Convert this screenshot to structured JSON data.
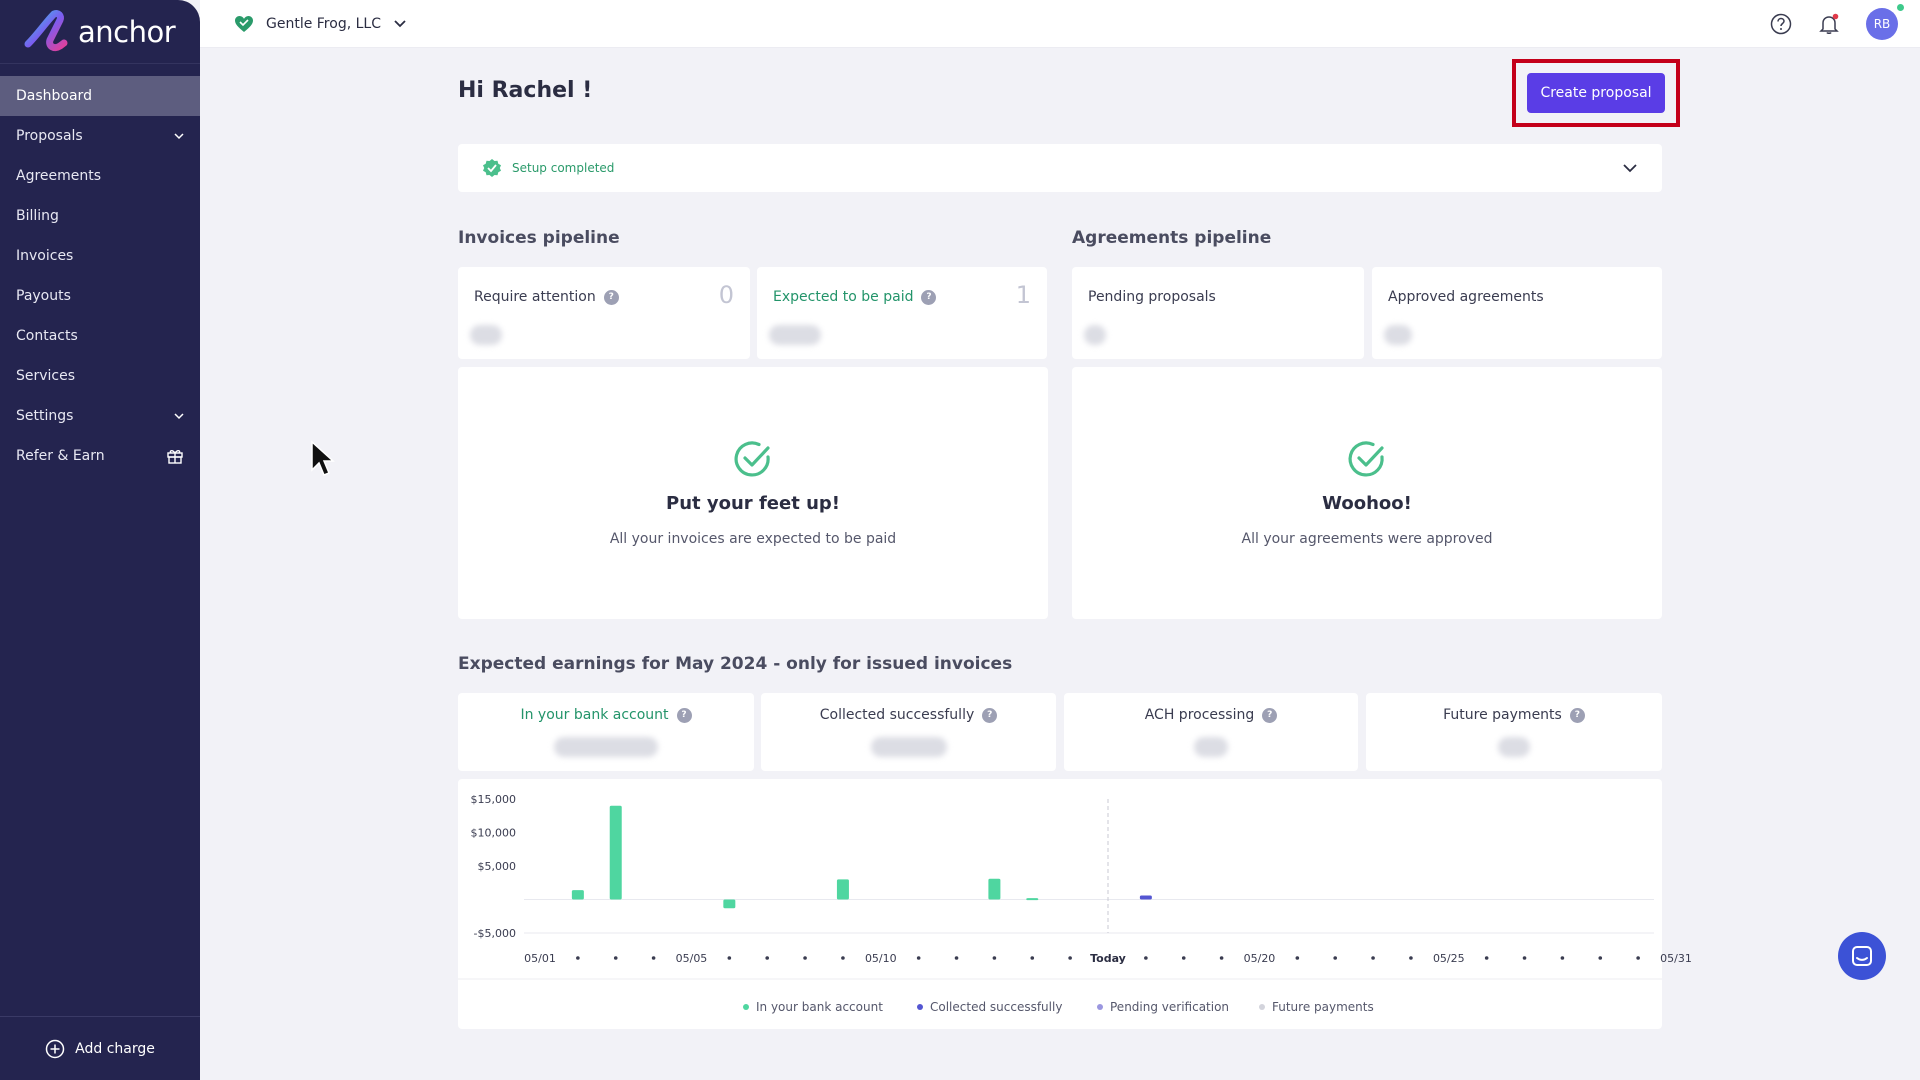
{
  "brand": {
    "name": "anchor"
  },
  "sidebar": {
    "items": [
      {
        "label": "Dashboard",
        "active": true,
        "icon": ""
      },
      {
        "label": "Proposals",
        "icon": "chevron-down-icon"
      },
      {
        "label": "Agreements",
        "icon": ""
      },
      {
        "label": "Billing",
        "icon": ""
      },
      {
        "label": "Invoices",
        "icon": ""
      },
      {
        "label": "Payouts",
        "icon": ""
      },
      {
        "label": "Contacts",
        "icon": ""
      },
      {
        "label": "Services",
        "icon": ""
      },
      {
        "label": "Settings",
        "icon": "chevron-down-icon"
      },
      {
        "label": "Refer & Earn",
        "icon": "gift-icon"
      }
    ],
    "add_charge_label": "Add charge"
  },
  "topbar": {
    "org_name": "Gentle Frog, LLC",
    "avatar_initials": "RB"
  },
  "header": {
    "greeting": "Hi Rachel !",
    "create_label": "Create proposal"
  },
  "setup": {
    "label": "Setup completed"
  },
  "invoices_pipeline": {
    "title": "Invoices pipeline",
    "cards": [
      {
        "label": "Require attention",
        "count": "0"
      },
      {
        "label": "Expected to be paid",
        "count": "1"
      }
    ],
    "empty_title": "Put your feet up!",
    "empty_sub": "All your invoices are expected to be paid"
  },
  "agreements_pipeline": {
    "title": "Agreements pipeline",
    "cards": [
      {
        "label": "Pending proposals"
      },
      {
        "label": "Approved agreements"
      }
    ],
    "empty_title": "Woohoo!",
    "empty_sub": "All your agreements were approved"
  },
  "earnings": {
    "title": "Expected earnings for May 2024 - only for issued invoices",
    "cards": [
      {
        "label": "In your bank account"
      },
      {
        "label": "Collected successfully"
      },
      {
        "label": "ACH processing"
      },
      {
        "label": "Future payments"
      }
    ]
  },
  "colors": {
    "sidebar_bg": "#24244f",
    "accent": "#5a3de6",
    "bank": "#4fd6a0",
    "collected": "#5456d2",
    "pending": "#9b97e0",
    "future": "#d3d4dc"
  },
  "chart_data": {
    "type": "bar",
    "y_ticks": [
      "$15,000",
      "$10,000",
      "$5,000",
      "-$5,000"
    ],
    "y_tick_values": [
      15000,
      10000,
      5000,
      -5000
    ],
    "ylim": [
      -5000,
      15000
    ],
    "x_labels": [
      {
        "day": 1,
        "label": "05/01"
      },
      {
        "day": 5,
        "label": "05/05"
      },
      {
        "day": 10,
        "label": "05/10"
      },
      {
        "day": 16,
        "label": "Today"
      },
      {
        "day": 20,
        "label": "05/20"
      },
      {
        "day": 25,
        "label": "05/25"
      },
      {
        "day": 31,
        "label": "05/31"
      }
    ],
    "days_in_month": 31,
    "today_day": 16,
    "series": [
      {
        "name": "In your bank account",
        "color": "#4fd6a0",
        "points": [
          {
            "day": 2,
            "value": 1400
          },
          {
            "day": 3,
            "value": 14000
          },
          {
            "day": 6,
            "value": -1300
          },
          {
            "day": 9,
            "value": 3000
          },
          {
            "day": 13,
            "value": 3100
          },
          {
            "day": 14,
            "value": 200
          }
        ]
      },
      {
        "name": "Collected successfully",
        "color": "#5456d2",
        "points": [
          {
            "day": 17,
            "value": 600
          }
        ]
      },
      {
        "name": "Pending verification",
        "color": "#9b97e0",
        "points": []
      },
      {
        "name": "Future payments",
        "color": "#d3d4dc",
        "points": []
      }
    ]
  }
}
